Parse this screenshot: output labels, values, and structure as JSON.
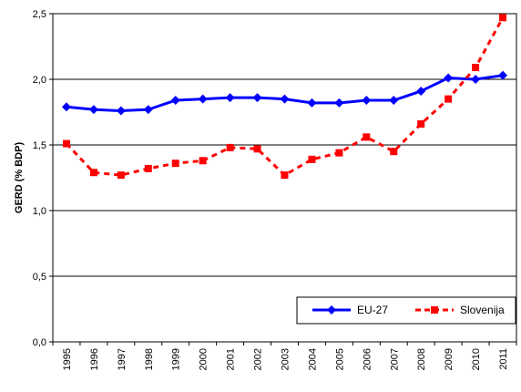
{
  "chart_data": {
    "type": "line",
    "title": "",
    "xlabel": "",
    "ylabel": "GERD (% BDP)",
    "x": [
      "1995",
      "1996",
      "1997",
      "1998",
      "1999",
      "2000",
      "2001",
      "2002",
      "2003",
      "2004",
      "2005",
      "2006",
      "2007",
      "2008",
      "2009",
      "2010",
      "2011"
    ],
    "ylim": [
      0,
      2.5
    ],
    "yticks": [
      "0,0",
      "0,5",
      "1,0",
      "1,5",
      "2,0",
      "2,5"
    ],
    "ytick_values": [
      0,
      0.5,
      1.0,
      1.5,
      2.0,
      2.5
    ],
    "grid": "horizontal",
    "legend_position": "bottom-right",
    "series": [
      {
        "name": "EU-27",
        "color": "#0000FF",
        "style": "solid",
        "marker": "diamond",
        "values": [
          1.79,
          1.77,
          1.76,
          1.77,
          1.84,
          1.85,
          1.86,
          1.86,
          1.85,
          1.82,
          1.82,
          1.84,
          1.84,
          1.91,
          2.01,
          2.0,
          2.03
        ]
      },
      {
        "name": "Slovenija",
        "color": "#FF0000",
        "style": "dashed",
        "marker": "square",
        "values": [
          1.51,
          1.29,
          1.27,
          1.32,
          1.36,
          1.38,
          1.48,
          1.47,
          1.27,
          1.39,
          1.44,
          1.56,
          1.45,
          1.66,
          1.85,
          2.09,
          2.47
        ]
      }
    ]
  }
}
